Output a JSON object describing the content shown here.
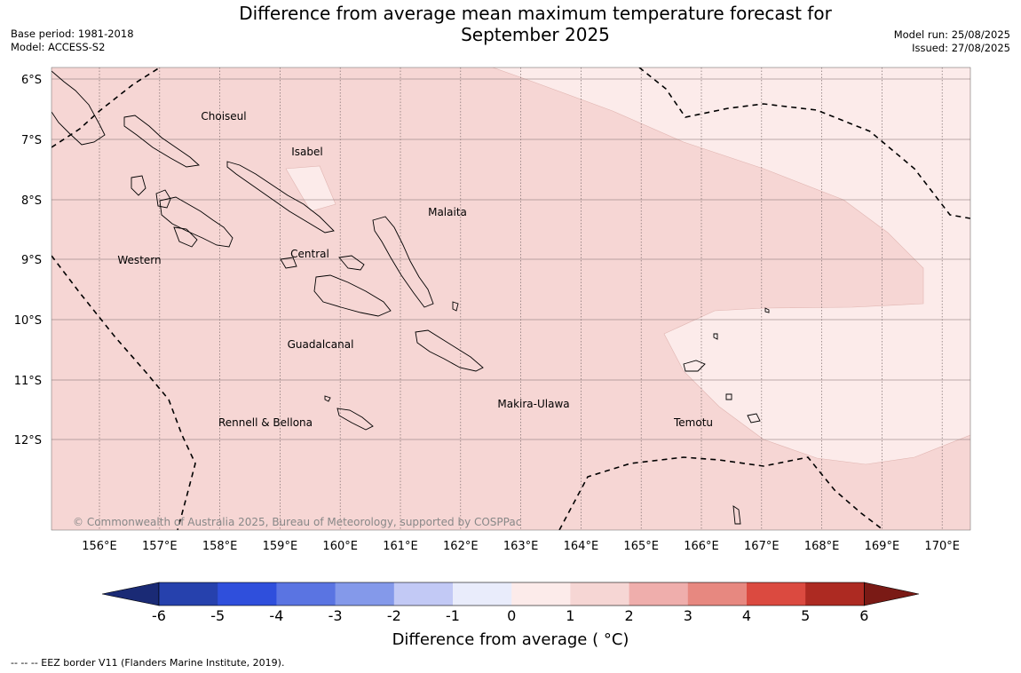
{
  "title_line1": "Difference from average mean maximum temperature forecast for",
  "title_line2": "September 2025",
  "base_period": "Base period: 1981-2018",
  "model": "Model: ACCESS-S2",
  "model_run": "Model run: 25/08/2025",
  "issued": "Issued: 27/08/2025",
  "copyright": "© Commonwealth of Australia 2025, Bureau of Meteorology, supported by COSPPac",
  "footer": "--  --  -- EEZ border V11 (Flanders Marine Institute, 2019).",
  "colorbar": {
    "title": "Difference from average ( °C)",
    "ticks": [
      "-6",
      "-5",
      "-4",
      "-3",
      "-2",
      "-1",
      "0",
      "1",
      "2",
      "3",
      "4",
      "5",
      "6"
    ],
    "colors": [
      "#1a2a75",
      "#2641ad",
      "#2f4fdc",
      "#5a74e2",
      "#8499ea",
      "#c2c9f5",
      "#e9ecfb",
      "#fcebea",
      "#f6d6d4",
      "#efaeac",
      "#e78880",
      "#db4a40",
      "#ad2a22",
      "#7a1a15"
    ]
  },
  "map": {
    "lat_labels": [
      "6°S",
      "7°S",
      "8°S",
      "9°S",
      "10°S",
      "11°S",
      "12°S"
    ],
    "lon_labels": [
      "156°E",
      "157°E",
      "158°E",
      "159°E",
      "160°E",
      "161°E",
      "162°E",
      "163°E",
      "164°E",
      "165°E",
      "166°E",
      "167°E",
      "168°E",
      "169°E",
      "170°E"
    ],
    "province_labels": [
      {
        "name": "Choiseul"
      },
      {
        "name": "Isabel"
      },
      {
        "name": "Malaita"
      },
      {
        "name": "Western"
      },
      {
        "name": "Central"
      },
      {
        "name": "Guadalcanal"
      },
      {
        "name": "Makira-Ulawa"
      },
      {
        "name": "Rennell & Bellona"
      },
      {
        "name": "Temotu"
      }
    ]
  }
}
